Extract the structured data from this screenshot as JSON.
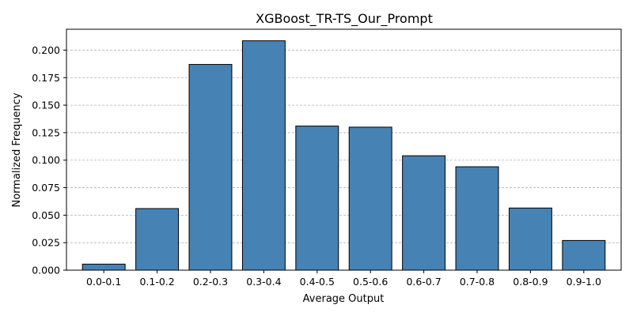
{
  "chart_data": {
    "type": "bar",
    "title": "XGBoost_TR-TS_Our_Prompt",
    "xlabel": "Average Output",
    "ylabel": "Normalized Frequency",
    "categories": [
      "0.0-0.1",
      "0.1-0.2",
      "0.2-0.3",
      "0.3-0.4",
      "0.4-0.5",
      "0.5-0.6",
      "0.6-0.7",
      "0.7-0.8",
      "0.8-0.9",
      "0.9-1.0"
    ],
    "values": [
      0.0055,
      0.056,
      0.187,
      0.2085,
      0.131,
      0.13,
      0.104,
      0.094,
      0.0565,
      0.027
    ],
    "ylim": [
      0,
      0.219
    ],
    "yticks": [
      0.0,
      0.025,
      0.05,
      0.075,
      0.1,
      0.125,
      0.15,
      0.175,
      0.2
    ],
    "ytick_labels": [
      "0.000",
      "0.025",
      "0.050",
      "0.075",
      "0.100",
      "0.125",
      "0.150",
      "0.175",
      "0.200"
    ],
    "grid": "y-dashed",
    "bar_color": "#4682b4",
    "edge_color": "#000000"
  }
}
